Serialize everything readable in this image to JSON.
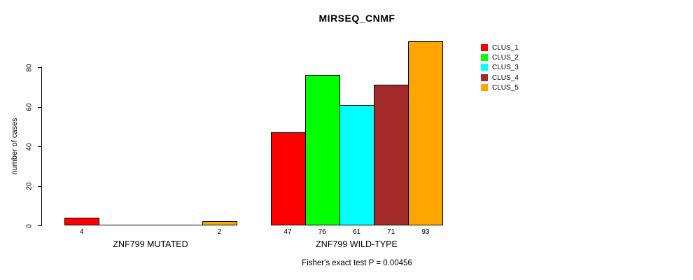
{
  "title": "MIRSEQ_CNMF",
  "caption": "Fisher's exact test P = 0.00456",
  "y_axis": {
    "label": "number of cases",
    "ticks": [
      0,
      20,
      40,
      60,
      80
    ]
  },
  "legend": {
    "items": [
      {
        "label": "CLUS_1",
        "color": "#FF0000"
      },
      {
        "label": "CLUS_2",
        "color": "#00FF00"
      },
      {
        "label": "CLUS_3",
        "color": "#00FFFF"
      },
      {
        "label": "CLUS_4",
        "color": "#A52A2A"
      },
      {
        "label": "CLUS_5",
        "color": "#FFA500"
      }
    ]
  },
  "chart_data": {
    "type": "bar",
    "title": "MIRSEQ_CNMF",
    "xlabel": "",
    "ylabel": "number of cases",
    "categories": [
      "ZNF799 MUTATED",
      "ZNF799 WILD-TYPE"
    ],
    "series": [
      {
        "name": "CLUS_1",
        "color": "#FF0000",
        "values": [
          4,
          47
        ]
      },
      {
        "name": "CLUS_2",
        "color": "#00FF00",
        "values": [
          0,
          76
        ]
      },
      {
        "name": "CLUS_3",
        "color": "#00FFFF",
        "values": [
          0,
          61
        ]
      },
      {
        "name": "CLUS_4",
        "color": "#A52A2A",
        "values": [
          0,
          71
        ]
      },
      {
        "name": "CLUS_5",
        "color": "#FFA500",
        "values": [
          2,
          93
        ]
      }
    ],
    "bar_value_labels": [
      [
        "4",
        "",
        "",
        "",
        "2"
      ],
      [
        "47",
        "76",
        "61",
        "71",
        "93"
      ]
    ],
    "annotation": "Fisher's exact test P = 0.00456",
    "ylim": [
      0,
      95
    ],
    "yticks": [
      0,
      20,
      40,
      60,
      80
    ],
    "grid": false,
    "legend_position": "top-right",
    "zero_bars_hidden": true
  }
}
